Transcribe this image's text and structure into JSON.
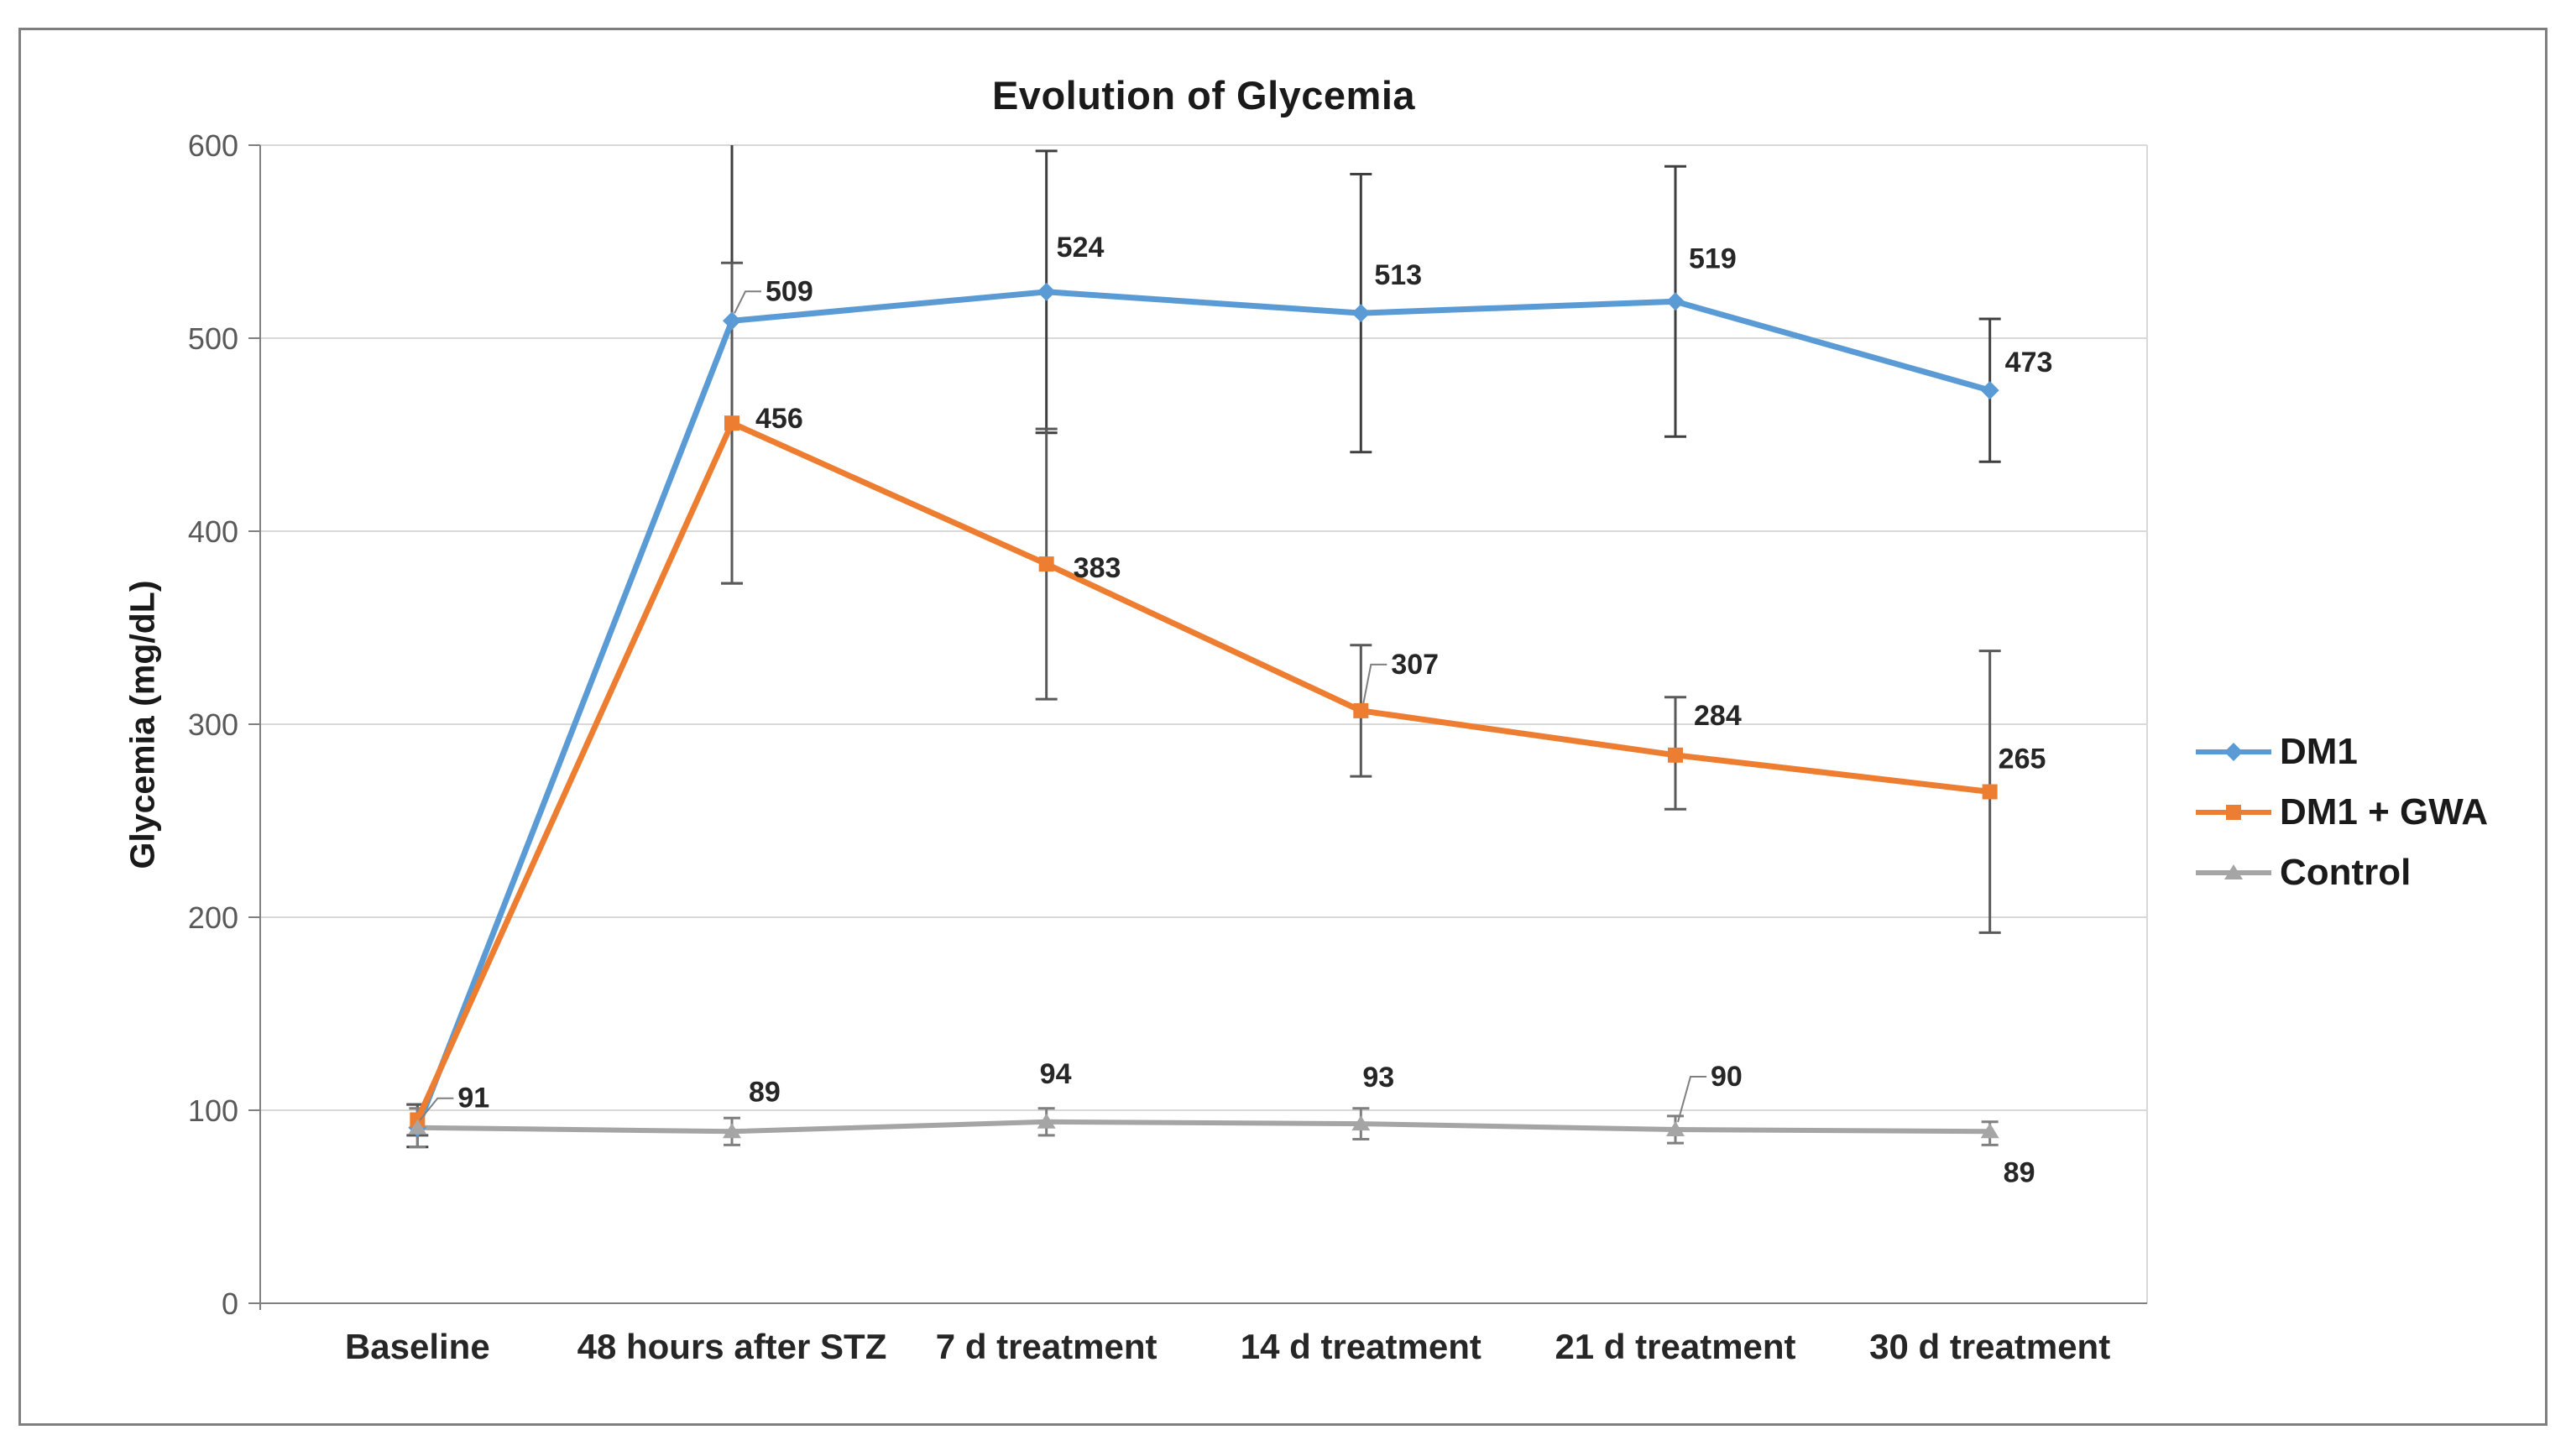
{
  "chart_data": {
    "type": "line",
    "title": "Evolution of Glycemia",
    "ylabel": "Glycemia (mg/dL)",
    "xlabel": "",
    "ylim": [
      0,
      600
    ],
    "yticks": [
      0,
      100,
      200,
      300,
      400,
      500,
      600
    ],
    "grid": "horizontal-only",
    "legend_position": "right-middle",
    "categories": [
      "Baseline",
      "48 hours after STZ",
      "7 d treatment",
      "14 d treatment",
      "21 d treatment",
      "30 d treatment"
    ],
    "series": [
      {
        "name": "DM1",
        "color": "#5B9BD5",
        "marker": "diamond",
        "error_color": "#3f3f3f",
        "values": [
          91,
          509,
          524,
          513,
          519,
          473
        ],
        "labels": [
          null,
          "509",
          "524",
          "513",
          "519",
          "473"
        ],
        "error_low": [
          81,
          373,
          451,
          441,
          449,
          436
        ],
        "error_high": [
          103,
          646,
          597,
          585,
          589,
          510
        ],
        "label_dx": [
          0,
          40,
          12,
          16,
          16,
          18
        ],
        "label_dy": [
          0,
          -24,
          -42,
          -34,
          -40,
          -22
        ],
        "label_leader": [
          false,
          true,
          false,
          false,
          false,
          false
        ]
      },
      {
        "name": "DM1 + GWA",
        "color": "#ED7D31",
        "marker": "square",
        "error_color": "#595959",
        "values": [
          95,
          456,
          383,
          307,
          284,
          265
        ],
        "labels": [
          null,
          "456",
          "383",
          "307",
          "284",
          "265"
        ],
        "error_low": [
          87,
          373,
          313,
          273,
          256,
          192
        ],
        "error_high": [
          103,
          539,
          453,
          341,
          314,
          338
        ],
        "label_dx": [
          0,
          28,
          32,
          36,
          22,
          10
        ],
        "label_dy": [
          0,
          6,
          16,
          -44,
          -36,
          -28
        ],
        "label_leader": [
          false,
          false,
          false,
          true,
          false,
          false
        ]
      },
      {
        "name": "Control",
        "color": "#A5A5A5",
        "marker": "triangle",
        "error_color": "#7f7f7f",
        "values": [
          91,
          89,
          94,
          93,
          90,
          89
        ],
        "labels": [
          "91",
          "89",
          "94",
          "93",
          "90",
          "89"
        ],
        "error_low": [
          81,
          82,
          87,
          85,
          83,
          82
        ],
        "error_high": [
          101,
          96,
          101,
          101,
          97,
          94
        ],
        "label_dx": [
          48,
          20,
          -8,
          2,
          42,
          16
        ],
        "label_dy": [
          -24,
          -36,
          -46,
          -44,
          -52,
          60
        ],
        "label_leader": [
          true,
          false,
          false,
          false,
          true,
          false
        ]
      }
    ],
    "colors": {
      "grid": "#D9D9D9",
      "axis": "#808080",
      "tick_text": "#595959",
      "label_text": "#262626",
      "frame_border": "#7f7f7f"
    }
  }
}
